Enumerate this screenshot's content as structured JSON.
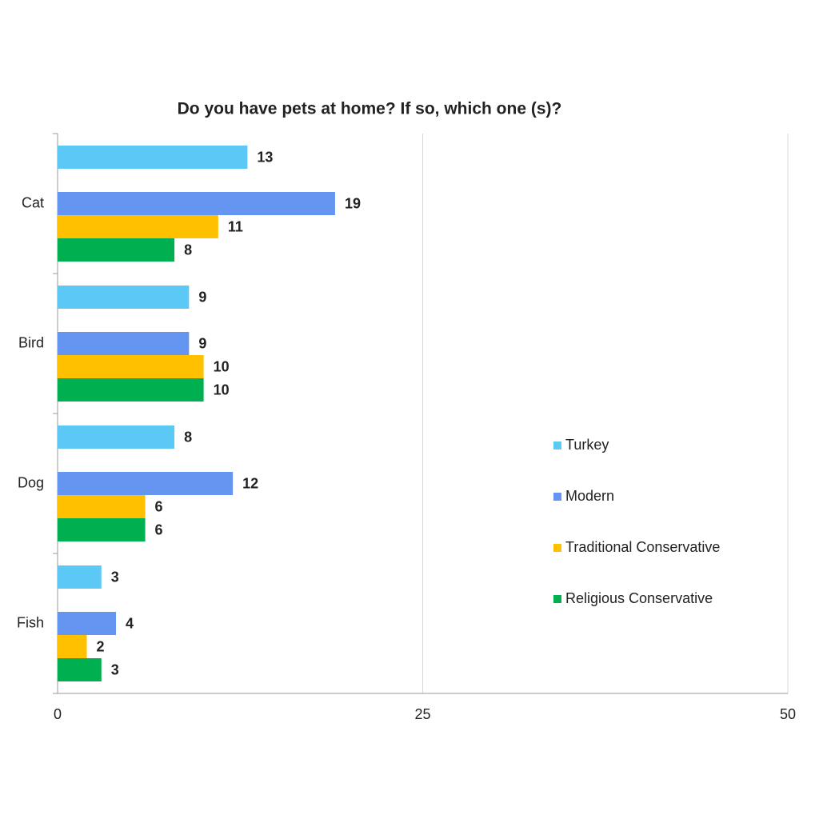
{
  "chart_data": {
    "type": "bar",
    "orientation": "horizontal",
    "title": "Do you have pets at home? If so, which one (s)?",
    "categories": [
      "Cat",
      "Bird",
      "Dog",
      "Fish"
    ],
    "series": [
      {
        "name": "Turkey",
        "color": "#5bc8f5",
        "values": [
          13,
          9,
          8,
          3
        ]
      },
      {
        "name": "Modern",
        "color": "#6495f0",
        "values": [
          19,
          9,
          12,
          4
        ]
      },
      {
        "name": "Traditional Conservative",
        "color": "#ffc000",
        "values": [
          11,
          10,
          6,
          2
        ]
      },
      {
        "name": "Religious Conservative",
        "color": "#00b050",
        "values": [
          8,
          10,
          6,
          3
        ]
      }
    ],
    "xlim": [
      0,
      50
    ],
    "xticks": [
      0,
      25,
      50
    ],
    "grid": true,
    "legend": "right"
  }
}
